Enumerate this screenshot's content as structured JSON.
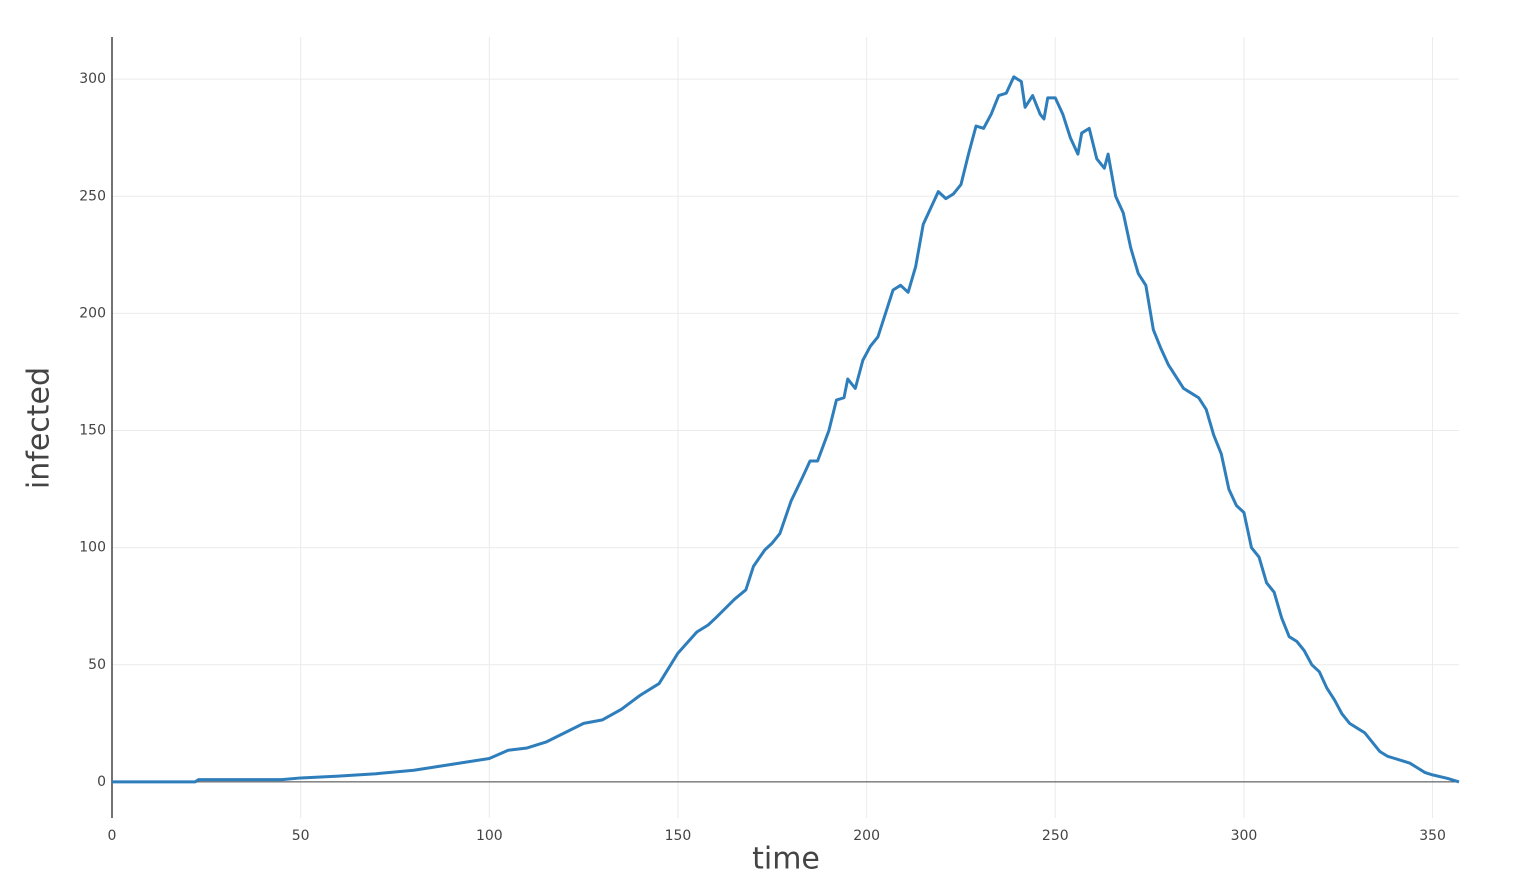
{
  "chart_data": {
    "type": "line",
    "x_label": "time",
    "y_label": "infected",
    "x": [
      0,
      22,
      23,
      45,
      50,
      60,
      70,
      80,
      90,
      100,
      105,
      110,
      115,
      120,
      125,
      130,
      135,
      140,
      145,
      150,
      155,
      158,
      160,
      165,
      168,
      170,
      173,
      175,
      177,
      180,
      183,
      185,
      187,
      190,
      192,
      194,
      195,
      197,
      199,
      201,
      203,
      205,
      207,
      209,
      211,
      213,
      215,
      217,
      219,
      221,
      223,
      225,
      227,
      229,
      231,
      233,
      235,
      237,
      239,
      241,
      242,
      244,
      246,
      247,
      248,
      250,
      252,
      254,
      256,
      257,
      259,
      261,
      263,
      264,
      266,
      268,
      270,
      272,
      274,
      276,
      278,
      280,
      282,
      284,
      286,
      288,
      290,
      292,
      294,
      296,
      298,
      300,
      302,
      304,
      306,
      308,
      310,
      312,
      314,
      316,
      318,
      320,
      322,
      324,
      326,
      328,
      330,
      332,
      334,
      336,
      338,
      340,
      342,
      344,
      346,
      348,
      350,
      354,
      357
    ],
    "series": [
      {
        "name": "infected",
        "color": "#2f7ebc",
        "values": [
          0,
          0,
          1,
          1,
          1.7,
          2.5,
          3.5,
          5,
          7.5,
          10,
          13.5,
          14.5,
          17,
          21,
          25,
          26.5,
          31,
          37,
          42,
          55,
          64,
          67,
          70,
          78,
          82,
          92,
          99,
          102,
          106,
          120,
          130,
          137,
          137,
          150,
          163,
          164,
          172,
          168,
          180,
          186,
          190,
          200,
          210,
          212,
          209,
          220,
          238,
          245,
          252,
          249,
          251,
          255,
          268,
          280,
          279,
          285,
          293,
          294,
          301,
          299,
          288,
          293,
          285,
          283,
          292,
          292,
          285,
          275,
          268,
          277,
          279,
          266,
          262,
          268,
          250,
          243,
          228,
          217,
          212,
          193,
          185,
          178,
          173,
          168,
          166,
          164,
          159,
          148,
          140,
          125,
          118,
          115,
          100,
          96,
          85,
          81,
          70,
          62,
          60,
          56,
          50,
          47,
          40,
          35,
          29,
          25,
          23,
          21,
          17,
          13,
          11,
          10,
          9,
          8,
          6,
          4,
          3,
          1.5,
          0
        ]
      }
    ],
    "xlim": [
      0,
      357
    ],
    "ylim": [
      -15.4,
      318
    ],
    "xticks": [
      0,
      50,
      100,
      150,
      200,
      250,
      300,
      350
    ],
    "yticks": [
      0,
      50,
      100,
      150,
      200,
      250,
      300
    ],
    "grid": true
  }
}
